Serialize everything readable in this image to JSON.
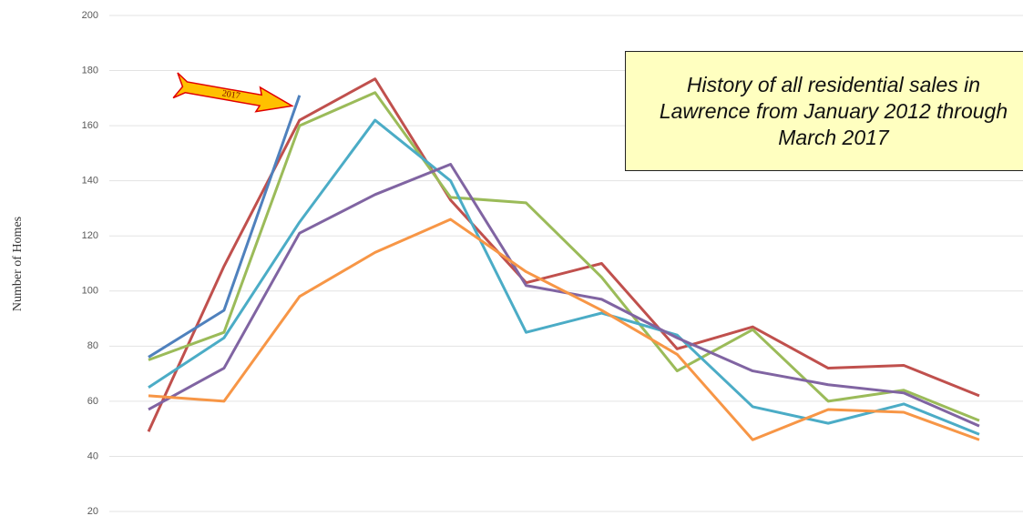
{
  "chart_data": {
    "type": "line",
    "y_label": "Number of Homes",
    "annotation": "History of all residential sales in Lawrence from January 2012 through March 2017",
    "arrow_label": "2017",
    "categories": [
      null,
      null,
      null,
      null,
      null,
      null,
      null,
      null,
      null,
      null,
      null,
      null
    ],
    "series": [
      {
        "color": "#c0504d",
        "values": [
          49,
          109,
          162,
          177,
          133,
          103,
          110,
          79,
          87,
          72,
          73,
          62
        ]
      },
      {
        "color": "#9bbb59",
        "values": [
          75,
          85,
          160,
          172,
          134,
          132,
          105,
          71,
          86,
          60,
          64,
          53
        ]
      },
      {
        "color": "#4bacc6",
        "values": [
          65,
          83,
          125,
          162,
          140,
          85,
          92,
          84,
          58,
          52,
          59,
          48
        ]
      },
      {
        "color": "#8064a2",
        "values": [
          57,
          72,
          121,
          135,
          146,
          102,
          97,
          83,
          71,
          66,
          63,
          51
        ]
      },
      {
        "color": "#f79646",
        "values": [
          62,
          60,
          98,
          114,
          126,
          107,
          93,
          77,
          46,
          57,
          56,
          46
        ]
      },
      {
        "color": "#4f81bd",
        "values": [
          76,
          93,
          171,
          null,
          null,
          null,
          null,
          null,
          null,
          null,
          null,
          null
        ]
      }
    ],
    "ylim": [
      20,
      200
    ],
    "yticks": [
      20,
      40,
      60,
      80,
      100,
      120,
      140,
      160,
      180,
      200
    ],
    "grid": true
  }
}
